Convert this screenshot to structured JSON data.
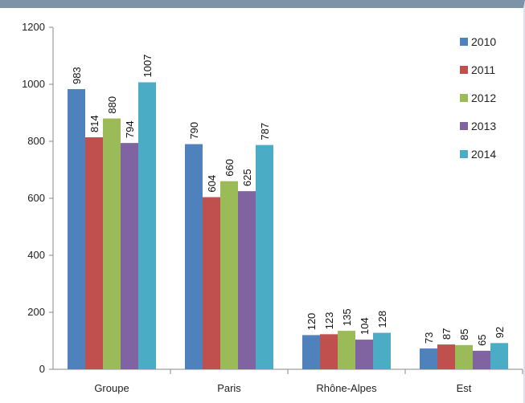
{
  "chart_data": {
    "type": "bar",
    "categories": [
      "Groupe",
      "Paris",
      "Rhône-Alpes",
      "Est"
    ],
    "series": [
      {
        "name": "2010",
        "color": "#4f81bd",
        "values": [
          983,
          790,
          120,
          73
        ]
      },
      {
        "name": "2011",
        "color": "#c0504d",
        "values": [
          814,
          604,
          123,
          87
        ]
      },
      {
        "name": "2012",
        "color": "#9bbb59",
        "values": [
          880,
          660,
          135,
          85
        ]
      },
      {
        "name": "2013",
        "color": "#8064a2",
        "values": [
          794,
          625,
          104,
          65
        ]
      },
      {
        "name": "2014",
        "color": "#4bacc6",
        "values": [
          1007,
          787,
          128,
          92
        ]
      }
    ],
    "ylim": [
      0,
      1200
    ],
    "yticks": [
      0,
      200,
      400,
      600,
      800,
      1000,
      1200
    ],
    "title": "",
    "xlabel": "",
    "ylabel": "",
    "legend_position": "right",
    "grid": false
  }
}
